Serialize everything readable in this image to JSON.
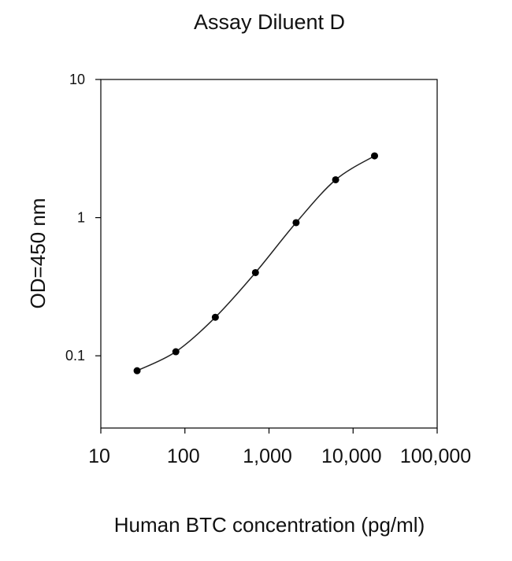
{
  "chart_data": {
    "type": "line",
    "title": "Assay Diluent D",
    "xlabel": "Human BTC concentration (pg/ml)",
    "ylabel": "OD=450 nm",
    "x_scale": "log",
    "y_scale": "log",
    "xlim": [
      10,
      100000
    ],
    "ylim": [
      0.03,
      10
    ],
    "x_ticks": [
      10,
      100,
      1000,
      10000,
      100000
    ],
    "x_tick_labels": [
      "10",
      "100",
      "1,000",
      "10,000",
      "100,000"
    ],
    "y_ticks": [
      0.1,
      1,
      10
    ],
    "y_tick_labels": [
      "0.1",
      "1",
      "10"
    ],
    "grid": false,
    "legend": "none",
    "series": [
      {
        "x": [
          27,
          78,
          230,
          690,
          2100,
          6200,
          18000
        ],
        "y": [
          0.078,
          0.107,
          0.19,
          0.4,
          0.92,
          1.88,
          2.8
        ]
      }
    ],
    "colors": {
      "line": "#222222",
      "marker": "#000000",
      "axis": "#000000"
    }
  }
}
